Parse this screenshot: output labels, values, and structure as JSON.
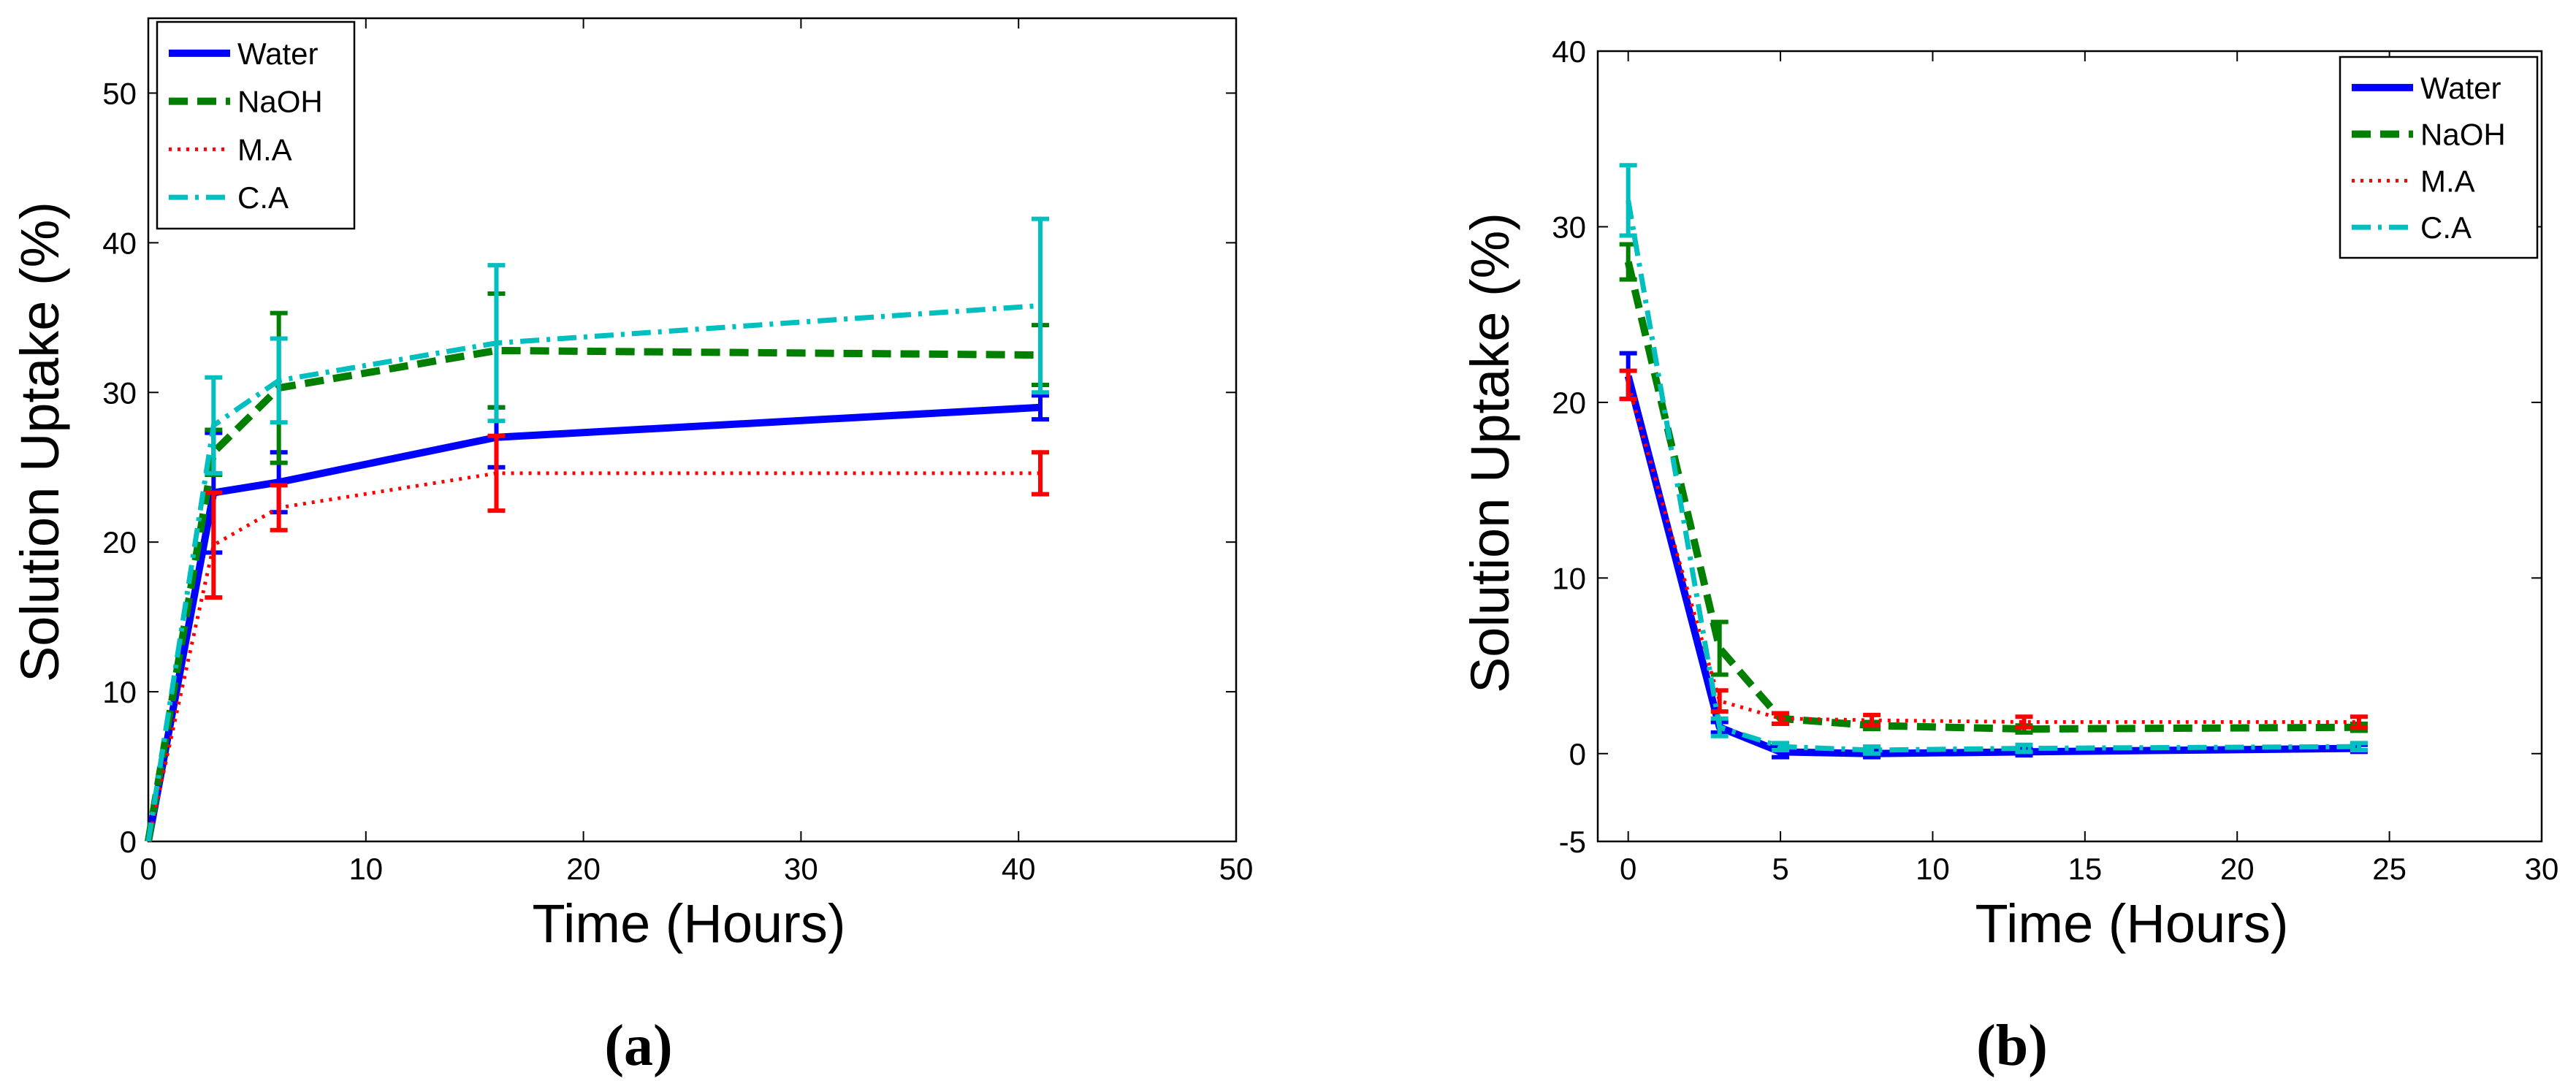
{
  "colors": {
    "Water": "#0000ff",
    "NaOH": "#007f00",
    "M.A": "#ff0000",
    "C.A": "#00bfbf"
  },
  "chart_data": [
    {
      "id": "a",
      "panel_label_open": "(",
      "panel_label_letter": "a",
      "panel_label_close": ")",
      "type": "line",
      "xlabel": "Time (Hours)",
      "ylabel": "Solution Uptake (%)",
      "xlim": [
        0,
        50
      ],
      "ylim": [
        0,
        55
      ],
      "xticks": [
        0,
        10,
        20,
        30,
        40,
        50
      ],
      "yticks": [
        0,
        10,
        20,
        30,
        40,
        50
      ],
      "grid": false,
      "legend_position": "top-left",
      "series": [
        {
          "name": "Water",
          "style": "solid",
          "x": [
            0,
            3,
            6,
            16,
            41
          ],
          "values": [
            0,
            23.3,
            24.0,
            27.0,
            29.0
          ],
          "errors": [
            0,
            4.0,
            2.0,
            2.0,
            0.8
          ]
        },
        {
          "name": "NaOH",
          "style": "dashed",
          "x": [
            0,
            3,
            6,
            16,
            41
          ],
          "values": [
            0,
            26.0,
            30.3,
            32.8,
            32.5
          ],
          "errors": [
            0,
            1.5,
            5.0,
            3.8,
            2.0
          ]
        },
        {
          "name": "M.A",
          "style": "dotted",
          "x": [
            0,
            3,
            6,
            16,
            41
          ],
          "values": [
            0,
            19.8,
            22.3,
            24.6,
            24.6
          ],
          "errors": [
            0,
            3.5,
            1.5,
            2.5,
            1.4
          ]
        },
        {
          "name": "C.A",
          "style": "dashdot",
          "x": [
            0,
            3,
            6,
            16,
            41
          ],
          "values": [
            0,
            27.8,
            30.8,
            33.3,
            35.8
          ],
          "errors": [
            0,
            3.2,
            2.8,
            5.2,
            5.8
          ]
        }
      ]
    },
    {
      "id": "b",
      "panel_label_open": "(",
      "panel_label_letter": "b",
      "panel_label_close": ")",
      "type": "line",
      "xlabel": "Time (Hours)",
      "ylabel": "Solution Uptake (%)",
      "xlim": [
        -1,
        30
      ],
      "ylim": [
        -5,
        40
      ],
      "xticks": [
        0,
        5,
        10,
        15,
        20,
        25,
        30
      ],
      "yticks": [
        -5,
        0,
        10,
        20,
        30,
        40
      ],
      "grid": false,
      "legend_position": "top-right",
      "series": [
        {
          "name": "Water",
          "style": "solid",
          "x": [
            0,
            3,
            5,
            8,
            13,
            24
          ],
          "values": [
            21.5,
            1.5,
            0.1,
            0.0,
            0.1,
            0.3
          ],
          "errors": [
            1.3,
            0.3,
            0.3,
            0.2,
            0.2,
            0.2
          ]
        },
        {
          "name": "NaOH",
          "style": "dashed",
          "x": [
            0,
            3,
            5,
            8,
            13,
            24
          ],
          "values": [
            28.0,
            6.0,
            2.0,
            1.6,
            1.4,
            1.5
          ],
          "errors": [
            1.0,
            1.5,
            0.3,
            0.2,
            0.2,
            0.2
          ]
        },
        {
          "name": "M.A",
          "style": "dotted",
          "x": [
            0,
            3,
            5,
            8,
            13,
            24
          ],
          "values": [
            21.0,
            3.0,
            2.0,
            1.9,
            1.8,
            1.8
          ],
          "errors": [
            0.8,
            0.6,
            0.3,
            0.3,
            0.3,
            0.3
          ]
        },
        {
          "name": "C.A",
          "style": "dashdot",
          "x": [
            0,
            3,
            5,
            8,
            13,
            24
          ],
          "values": [
            31.5,
            1.5,
            0.4,
            0.2,
            0.3,
            0.4
          ],
          "errors": [
            2.0,
            0.5,
            0.2,
            0.2,
            0.2,
            0.2
          ]
        }
      ]
    }
  ]
}
